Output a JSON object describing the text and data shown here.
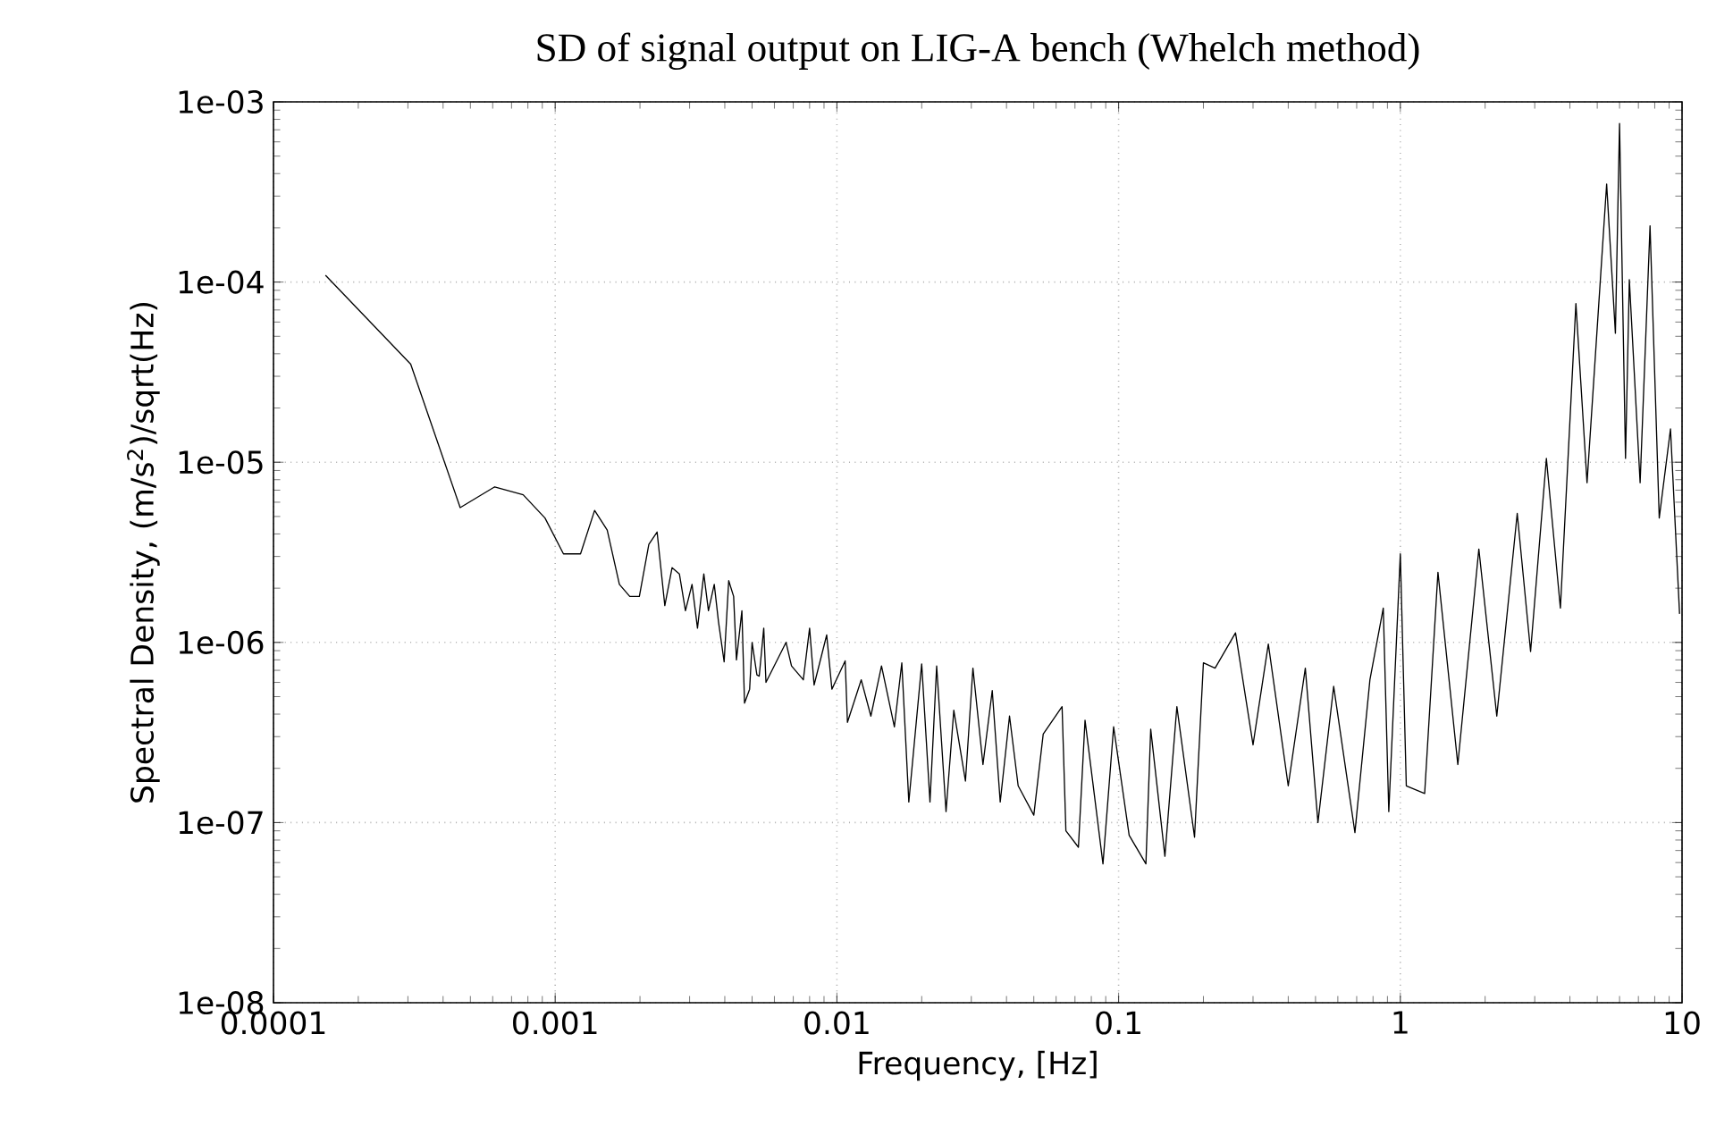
{
  "chart_data": {
    "type": "line",
    "title": "SD of signal output on LIG-A bench (Whelch method)",
    "xlabel": "Frequency, [Hz]",
    "ylabel": "Spectral Density, (m/s$^{2}$)/sqrt(Hz)",
    "log": "xy",
    "grid": true,
    "marker": "none",
    "line_style": "solid",
    "xlim": [
      0.0001,
      10
    ],
    "ylim": [
      1e-08,
      0.001
    ],
    "xticks": [
      0.0001,
      0.001,
      0.01,
      0.1,
      1,
      10
    ],
    "yticks": [
      {
        "value": 1e-08,
        "label": "1e-08"
      },
      {
        "value": 1e-07,
        "label": "1e-07"
      },
      {
        "value": 1e-06,
        "label": "1e-06"
      },
      {
        "value": 1e-05,
        "label": "1e-05"
      },
      {
        "value": 0.0001,
        "label": "1e-04"
      },
      {
        "value": 0.001,
        "label": "1e-03"
      }
    ],
    "series": [
      {
        "color": "#000000",
        "x": [
          0.000153,
          0.000307,
          0.00046,
          0.00061,
          0.00077,
          0.00092,
          0.00107,
          0.00123,
          0.00138,
          0.00153,
          0.00169,
          0.00184,
          0.00199,
          0.00215,
          0.0023,
          0.00245,
          0.0026,
          0.00276,
          0.0029,
          0.00306,
          0.0032,
          0.00337,
          0.0035,
          0.00367,
          0.0038,
          0.00398,
          0.00413,
          0.0043,
          0.0044,
          0.0046,
          0.0047,
          0.0049,
          0.005,
          0.0052,
          0.0053,
          0.0055,
          0.0056,
          0.0066,
          0.0069,
          0.0076,
          0.008,
          0.0083,
          0.0092,
          0.0096,
          0.0107,
          0.0109,
          0.0122,
          0.0132,
          0.0144,
          0.016,
          0.017,
          0.018,
          0.02,
          0.0214,
          0.0226,
          0.0244,
          0.026,
          0.0286,
          0.0304,
          0.033,
          0.0356,
          0.038,
          0.041,
          0.044,
          0.05,
          0.054,
          0.063,
          0.065,
          0.072,
          0.076,
          0.088,
          0.096,
          0.109,
          0.125,
          0.13,
          0.146,
          0.161,
          0.186,
          0.2,
          0.22,
          0.26,
          0.3,
          0.34,
          0.4,
          0.46,
          0.51,
          0.58,
          0.69,
          0.78,
          0.87,
          0.91,
          1.0,
          1.05,
          1.22,
          1.36,
          1.6,
          1.9,
          2.2,
          2.6,
          2.9,
          3.3,
          3.7,
          4.2,
          4.6,
          5.0,
          5.4,
          5.8,
          6.0,
          6.3,
          6.5,
          7.1,
          7.7,
          8.3,
          9.1,
          9.8
        ],
        "values": [
          0.000109,
          3.5e-05,
          5.6e-06,
          7.3e-06,
          6.6e-06,
          4.9e-06,
          3.1e-06,
          3.1e-06,
          5.4e-06,
          4.2e-06,
          2.1e-06,
          1.8e-06,
          1.8e-06,
          3.5e-06,
          4.1e-06,
          1.6e-06,
          2.6e-06,
          2.4e-06,
          1.5e-06,
          2.1e-06,
          1.2e-06,
          2.4e-06,
          1.5e-06,
          2.1e-06,
          1.3e-06,
          7.8e-07,
          2.2e-06,
          1.8e-06,
          8e-07,
          1.5e-06,
          4.6e-07,
          5.5e-07,
          1e-06,
          6.6e-07,
          6.5e-07,
          1.2e-06,
          6e-07,
          1e-06,
          7.4e-07,
          6.2e-07,
          1.2e-06,
          5.8e-07,
          1.1e-06,
          5.5e-07,
          7.9e-07,
          3.6e-07,
          6.2e-07,
          3.9e-07,
          7.4e-07,
          3.4e-07,
          7.7e-07,
          1.3e-07,
          7.6e-07,
          1.3e-07,
          7.4e-07,
          1.15e-07,
          4.2e-07,
          1.7e-07,
          7.2e-07,
          2.1e-07,
          5.4e-07,
          1.3e-07,
          3.9e-07,
          1.6e-07,
          1.1e-07,
          3.1e-07,
          4.4e-07,
          9e-08,
          7.3e-08,
          3.7e-07,
          5.9e-08,
          3.4e-07,
          8.5e-08,
          5.9e-08,
          3.3e-07,
          6.5e-08,
          4.4e-07,
          8.3e-08,
          7.7e-07,
          7.2e-07,
          1.13e-06,
          2.7e-07,
          9.8e-07,
          1.6e-07,
          7.2e-07,
          1e-07,
          5.7e-07,
          8.8e-08,
          6.2e-07,
          1.55e-06,
          1.15e-07,
          3.1e-06,
          1.6e-07,
          1.45e-07,
          2.45e-06,
          2.1e-07,
          3.3e-06,
          3.9e-07,
          5.2e-06,
          8.9e-07,
          1.05e-05,
          1.55e-06,
          7.6e-05,
          7.7e-06,
          5.6e-05,
          0.00035,
          5.2e-05,
          0.00076,
          1.05e-05,
          0.000103,
          7.7e-06,
          0.000205,
          4.9e-06,
          1.53e-05,
          1.44e-06
        ]
      }
    ]
  }
}
